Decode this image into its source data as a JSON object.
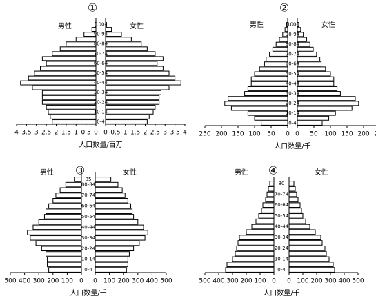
{
  "chart_data": [
    {
      "type": "pyramid",
      "title": "①",
      "xlabel": "人口数量/百万",
      "categories": [
        "0-4",
        null,
        "10-14",
        null,
        "20-24",
        null,
        "30-34",
        null,
        "40-44",
        null,
        "50-54",
        null,
        "60-64",
        null,
        "70-74",
        null,
        "80-84",
        null,
        "90-94",
        null,
        "100-"
      ],
      "series": [
        {
          "name": "男性",
          "color": "#ffffff",
          "values": [
            2.2,
            2.3,
            2.4,
            2.5,
            2.7,
            2.7,
            2.7,
            3.2,
            3.8,
            3.4,
            3.1,
            2.8,
            2.5,
            2.7,
            2.2,
            1.8,
            1.5,
            1.0,
            0.6,
            0.2,
            0.05
          ]
        },
        {
          "name": "女性",
          "color": "#ffffff",
          "values": [
            2.1,
            2.2,
            2.4,
            2.5,
            2.7,
            2.7,
            2.8,
            3.2,
            3.8,
            3.5,
            3.2,
            2.9,
            2.6,
            2.9,
            2.5,
            2.1,
            1.8,
            1.3,
            0.8,
            0.3,
            0.05
          ]
        }
      ],
      "xlim": [
        0,
        4
      ],
      "xticks": [
        0,
        0.5,
        1,
        1.5,
        2,
        2.5,
        3,
        3.5,
        4
      ]
    },
    {
      "type": "pyramid",
      "title": "②",
      "xlabel": "人口数量/千",
      "categories": [
        "0-4",
        null,
        "10-14",
        null,
        "20-24",
        null,
        "30-34",
        null,
        "40-44",
        null,
        "50-54",
        null,
        "60-64",
        null,
        "70-74",
        null,
        "80-84",
        null,
        "90-94",
        null,
        "100-"
      ],
      "series": [
        {
          "name": "男性",
          "color": "#ffffff",
          "values": [
            80,
            100,
            120,
            170,
            190,
            180,
            130,
            120,
            110,
            110,
            100,
            85,
            70,
            65,
            55,
            45,
            35,
            25,
            15,
            8,
            3
          ]
        },
        {
          "name": "女性",
          "color": "#ffffff",
          "values": [
            75,
            95,
            115,
            165,
            185,
            175,
            130,
            120,
            110,
            110,
            100,
            85,
            72,
            68,
            58,
            48,
            38,
            28,
            18,
            10,
            4
          ]
        }
      ],
      "xlim": [
        0,
        250
      ],
      "xticks": [
        0,
        50,
        100,
        150,
        200,
        250
      ]
    },
    {
      "type": "pyramid",
      "title": "③",
      "xlabel": "人口数量/千",
      "categories": [
        "0-4",
        null,
        "10-14",
        null,
        "20-24",
        null,
        "30-34",
        null,
        "40-44",
        null,
        "50-54",
        null,
        "60-64",
        null,
        "70-74",
        null,
        "80-84",
        "85"
      ],
      "series": [
        {
          "name": "男性",
          "color": "#ffffff",
          "values": [
            230,
            240,
            240,
            250,
            280,
            320,
            360,
            380,
            340,
            300,
            260,
            250,
            230,
            200,
            180,
            150,
            110,
            50
          ]
        },
        {
          "name": "女性",
          "color": "#ffffff",
          "values": [
            220,
            230,
            230,
            240,
            270,
            310,
            350,
            370,
            340,
            300,
            270,
            260,
            250,
            230,
            210,
            190,
            160,
            110
          ]
        }
      ],
      "xlim": [
        0,
        500
      ],
      "xticks": [
        0,
        100,
        200,
        300,
        400,
        500
      ]
    },
    {
      "type": "pyramid",
      "title": "④",
      "xlabel": "人口数量/千",
      "categories": [
        "0-4",
        null,
        "10-14",
        null,
        "20-24",
        null,
        "30-34",
        null,
        "40-44",
        null,
        "50-54",
        null,
        "60-64",
        null,
        "70-74",
        null,
        "80"
      ],
      "series": [
        {
          "name": "男性",
          "color": "#ffffff",
          "values": [
            350,
            340,
            300,
            280,
            270,
            260,
            250,
            200,
            160,
            130,
            110,
            90,
            80,
            60,
            50,
            40,
            30
          ]
        },
        {
          "name": "女性",
          "color": "#ffffff",
          "values": [
            330,
            320,
            290,
            270,
            260,
            240,
            230,
            190,
            150,
            120,
            100,
            90,
            80,
            65,
            55,
            45,
            35
          ]
        }
      ],
      "xlim": [
        0,
        500
      ],
      "xticks": [
        0,
        100,
        200,
        300,
        400,
        500
      ]
    }
  ]
}
